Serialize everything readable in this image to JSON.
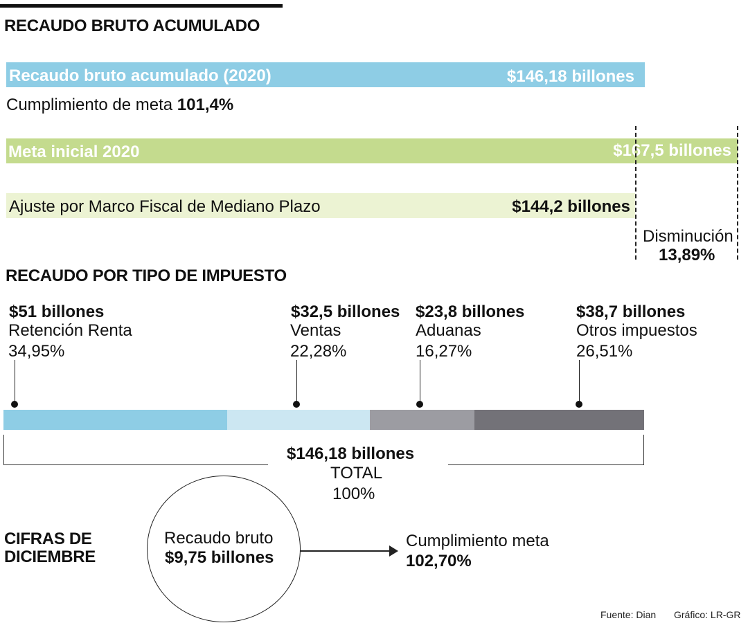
{
  "header": {
    "title": "RECAUDO BRUTO ACUMULADO"
  },
  "accumulated": {
    "bar_label": "Recaudo bruto acumulado (2020)",
    "bar_value": "$146,18 billones",
    "compliance_text": "Cumplimiento de meta",
    "compliance_value": "101,4%",
    "meta_label": "Meta inicial 2020",
    "meta_value": "$167,5 billones",
    "adjust_label": "Ajuste por Marco Fiscal de Mediano Plazo",
    "adjust_value": "$144,2 billones",
    "decrease_label": "Disminución",
    "decrease_value": "13,89%"
  },
  "by_tax": {
    "title": "RECAUDO POR TIPO DE IMPUESTO",
    "total_value": "$146,18 billones",
    "total_label": "TOTAL",
    "total_pct": "100%"
  },
  "december": {
    "title_line1": "CIFRAS DE",
    "title_line2": "DICIEMBRE",
    "gross_label": "Recaudo bruto",
    "gross_value": "$9,75 billones",
    "compliance_label": "Cumplimiento meta",
    "compliance_value": "102,70%"
  },
  "footer": {
    "source": "Fuente: Dian",
    "credit": "Gráfico: LR-GR"
  },
  "colors": {
    "blue": "#8ecde5",
    "light_blue": "#cce7f2",
    "green": "#c4db8e",
    "light_green": "#ecf3d3",
    "gray": "#9c9ca2",
    "dark_gray": "#737278"
  },
  "chart_data": [
    {
      "type": "bar",
      "orientation": "horizontal",
      "title": "RECAUDO BRUTO ACUMULADO",
      "unit": "billones",
      "categories": [
        "Recaudo bruto acumulado (2020)",
        "Meta inicial 2020",
        "Ajuste por Marco Fiscal de Mediano Plazo"
      ],
      "values": [
        146.18,
        167.5,
        144.2
      ],
      "value_labels": [
        "$146,18 billones",
        "$167,5 billones",
        "$144,2 billones"
      ],
      "annotations": [
        "Cumplimiento de meta 101,4%",
        "Disminución 13,89%"
      ],
      "xlim": [
        0,
        167.5
      ]
    },
    {
      "type": "bar",
      "orientation": "stacked-horizontal",
      "title": "RECAUDO POR TIPO DE IMPUESTO",
      "unit": "billones",
      "total": 146.18,
      "segments": [
        {
          "name": "Retención Renta",
          "value": 51,
          "value_label": "$51 billones",
          "pct_label": "34,95%",
          "color": "#8ecde5"
        },
        {
          "name": "Ventas",
          "value": 32.5,
          "value_label": "$32,5 billones",
          "pct_label": "22,28%",
          "color": "#cce7f2"
        },
        {
          "name": "Aduanas",
          "value": 23.8,
          "value_label": "$23,8 billones",
          "pct_label": "16,27%",
          "color": "#9c9ca2"
        },
        {
          "name": "Otros impuestos",
          "value": 38.7,
          "value_label": "$38,7 billones",
          "pct_label": "26,51%",
          "color": "#737278"
        }
      ]
    }
  ]
}
